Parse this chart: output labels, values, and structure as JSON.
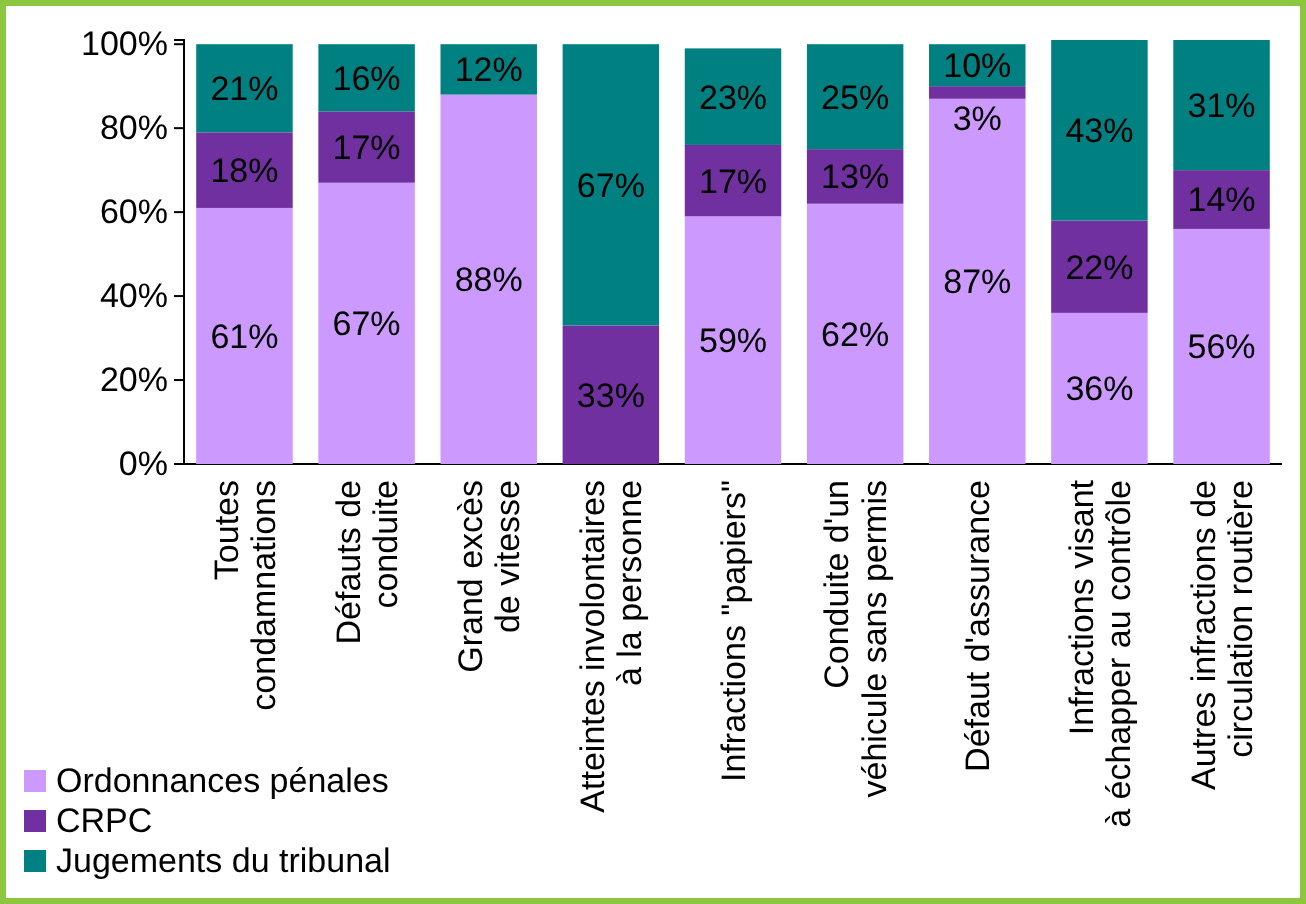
{
  "chart_data": {
    "type": "bar",
    "stacked": true,
    "categories": [
      "Toutes\ncondamnations",
      "Défauts de\nconduite",
      "Grand excès\nde vitesse",
      "Atteintes involontaires\nà la personne",
      "Infractions \"papiers\"",
      "Conduite d'un\nvéhicule sans permis",
      "Défaut d'assurance",
      "Infractions visant\nà échapper au contrôle",
      "Autres infractions de\ncirculation routière"
    ],
    "series": [
      {
        "name": "Ordonnances pénales",
        "color": "#cc99ff",
        "values": [
          61,
          67,
          88,
          0,
          59,
          62,
          87,
          36,
          56
        ],
        "value_labels": [
          "61%",
          "67%",
          "88%",
          null,
          "59%",
          "62%",
          "87%",
          "36%",
          "56%"
        ]
      },
      {
        "name": "CRPC",
        "color": "#7030a0",
        "values": [
          18,
          17,
          0,
          33,
          17,
          13,
          3,
          22,
          14
        ],
        "value_labels": [
          "18%",
          "17%",
          null,
          "33%",
          "17%",
          "13%",
          "3%",
          "22%",
          "14%"
        ]
      },
      {
        "name": "Jugements du tribunal",
        "color": "#008080",
        "values": [
          21,
          16,
          12,
          67,
          23,
          25,
          10,
          43,
          31
        ],
        "value_labels": [
          "21%",
          "16%",
          "12%",
          "67%",
          "23%",
          "25%",
          "10%",
          "43%",
          "31%"
        ]
      }
    ],
    "ylim": [
      0,
      101
    ],
    "yticks": [
      {
        "value": 0,
        "label": "0%"
      },
      {
        "value": 20,
        "label": "20%"
      },
      {
        "value": 40,
        "label": "40%"
      },
      {
        "value": 60,
        "label": "60%"
      },
      {
        "value": 80,
        "label": "80%"
      },
      {
        "value": 100,
        "label": "100%"
      }
    ],
    "grid": false,
    "legend": "bottom left"
  }
}
